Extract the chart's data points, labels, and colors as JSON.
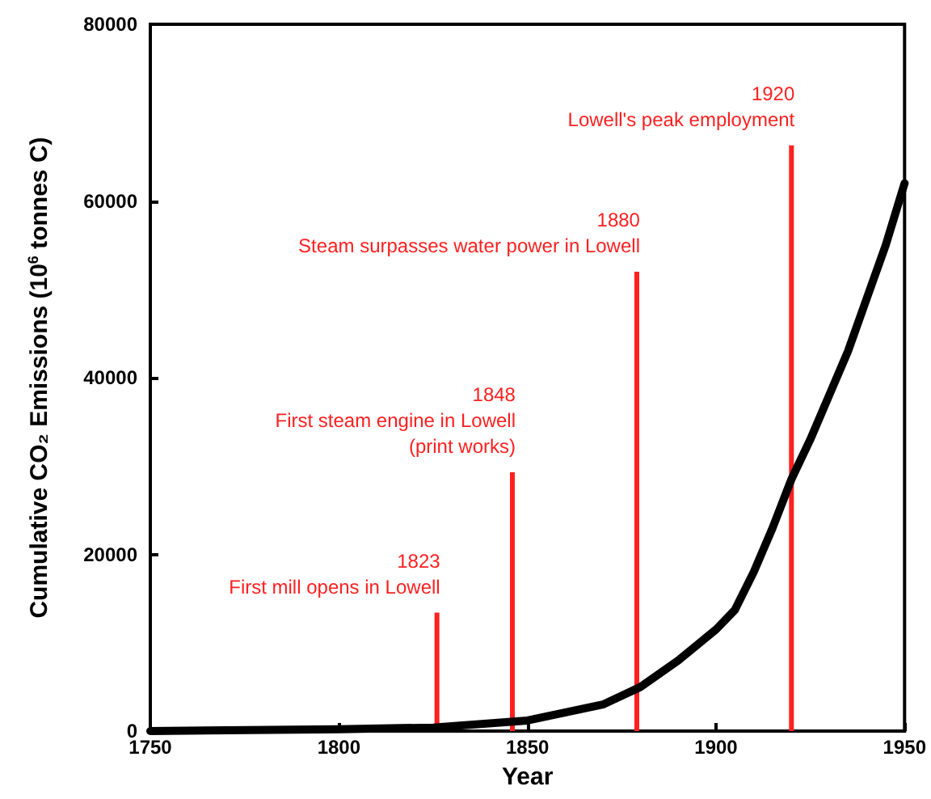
{
  "chart_data": {
    "type": "line",
    "xlabel": "Year",
    "ylabel": "Cumulative CO₂ Emissions (10$^{6}$ tonnes C)",
    "x": [
      1750,
      1800,
      1825,
      1850,
      1870,
      1880,
      1890,
      1900,
      1905,
      1910,
      1915,
      1920,
      1925,
      1930,
      1935,
      1940,
      1945,
      1950
    ],
    "series": [
      {
        "color": "#000000",
        "values": [
          0,
          200,
          400,
          1200,
          3000,
          5000,
          8000,
          11500,
          13700,
          18000,
          23000,
          28500,
          33000,
          38000,
          43000,
          49000,
          55000,
          62000
        ]
      },
      {
        "type": "bar",
        "color": "#ff2020",
        "x": [
          1826,
          1846,
          1879,
          1920
        ],
        "values": [
          13400,
          29300,
          52000,
          66300
        ]
      }
    ],
    "xlim": [
      1750,
      1950
    ],
    "xticks": [
      1750,
      1800,
      1850,
      1900,
      1950
    ],
    "ylim": [
      0,
      80000
    ],
    "yticks": [
      0,
      20000,
      40000,
      60000,
      80000
    ],
    "annotations": [
      "1823\nFirst mill opens in Lowell",
      "1848\nFirst steam engine in Lowell\n(print works)",
      "1880\nSteam surpasses water power in Lowell",
      "1920\nLowell's peak employment"
    ],
    "grid": false,
    "marker": "none",
    "line_style": "solid"
  }
}
